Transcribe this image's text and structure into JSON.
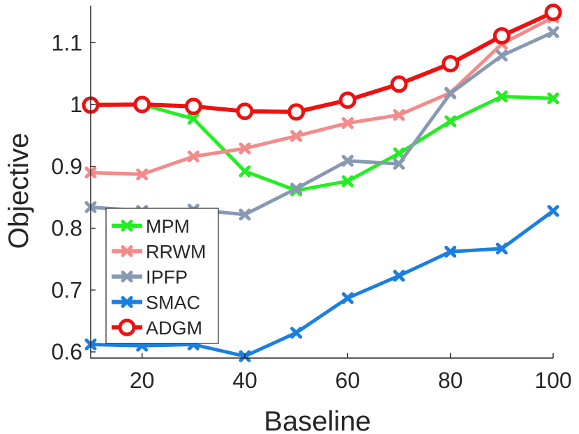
{
  "chart_data": {
    "type": "line",
    "title": "",
    "xlabel": "Baseline",
    "ylabel": "Objective",
    "xlim": [
      10,
      100
    ],
    "ylim": [
      0.59,
      1.16
    ],
    "x_ticks": [
      20,
      40,
      60,
      80,
      100
    ],
    "x_tick_labels": [
      "20",
      "40",
      "60",
      "80",
      "100"
    ],
    "y_ticks": [
      0.6,
      0.7,
      0.8,
      0.9,
      1.0,
      1.1
    ],
    "y_tick_labels": [
      "0.6",
      "0.7",
      "0.8",
      "0.9",
      "1",
      "1.1"
    ],
    "grid": false,
    "legend_position": "lower-left",
    "x": [
      10,
      20,
      30,
      40,
      50,
      60,
      70,
      80,
      90,
      100
    ],
    "series": [
      {
        "name": "MPM",
        "color": "#22ee22",
        "marker": "x-cross",
        "values": [
          1.0,
          1.0,
          0.977,
          0.892,
          0.861,
          0.876,
          0.921,
          0.973,
          1.013,
          1.01
        ]
      },
      {
        "name": "RRWM",
        "color": "#f48a8a",
        "marker": "x-cross",
        "values": [
          0.89,
          0.887,
          0.916,
          0.929,
          0.949,
          0.97,
          0.983,
          1.019,
          1.098,
          1.141
        ]
      },
      {
        "name": "IPFP",
        "color": "#8899b3",
        "marker": "x-cross",
        "values": [
          0.834,
          0.828,
          0.83,
          0.822,
          0.864,
          0.909,
          0.904,
          1.018,
          1.079,
          1.117
        ]
      },
      {
        "name": "SMAC",
        "color": "#1a7fe0",
        "marker": "x-cross",
        "values": [
          0.612,
          0.61,
          0.612,
          0.593,
          0.631,
          0.687,
          0.723,
          0.762,
          0.767,
          0.828
        ]
      },
      {
        "name": "ADGM",
        "color": "#ee1111",
        "marker": "circle",
        "values": [
          0.999,
          1.0,
          0.997,
          0.989,
          0.988,
          1.007,
          1.033,
          1.066,
          1.111,
          1.149
        ]
      }
    ]
  }
}
